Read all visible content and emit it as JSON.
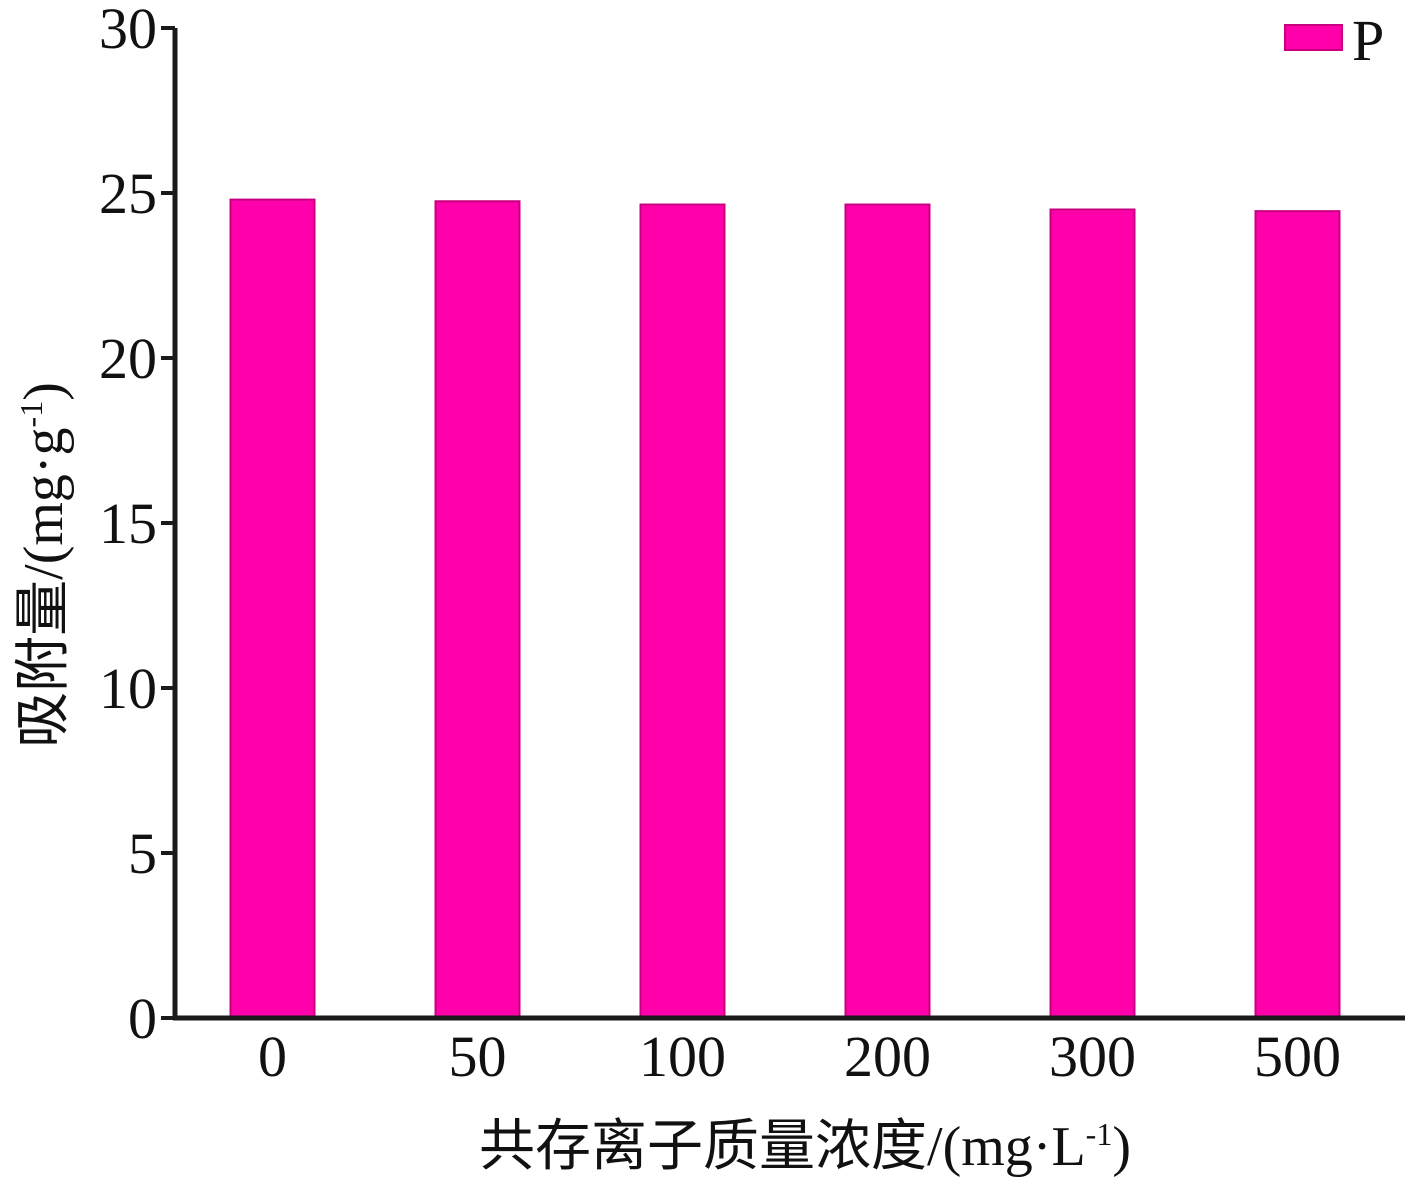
{
  "chart_data": {
    "type": "bar",
    "title": "",
    "categories": [
      "0",
      "50",
      "100",
      "200",
      "300",
      "500"
    ],
    "series": [
      {
        "name": "P",
        "values": [
          24.8,
          24.75,
          24.65,
          24.65,
          24.5,
          24.45
        ],
        "color": "#ff00aa"
      }
    ],
    "xlabel": "共存离子质量浓度/(mg·L-1)",
    "ylabel": "吸附量/(mg·g-1)",
    "ylim": [
      0,
      30
    ],
    "yticks": [
      "0",
      "5",
      "10",
      "15",
      "20",
      "25",
      "30"
    ],
    "grid": false,
    "legend_position": "top-right"
  },
  "axis_text": {
    "x_main": "共存离子质量浓度/(mg·L",
    "x_sup": "-1",
    "x_close": ")",
    "y_main": "吸附量/(mg·g",
    "y_sup": "-1",
    "y_close": ")"
  },
  "colors": {
    "bar": "#ff00aa",
    "bar_edge": "#c8007f",
    "axis": "#1a1a1a"
  }
}
